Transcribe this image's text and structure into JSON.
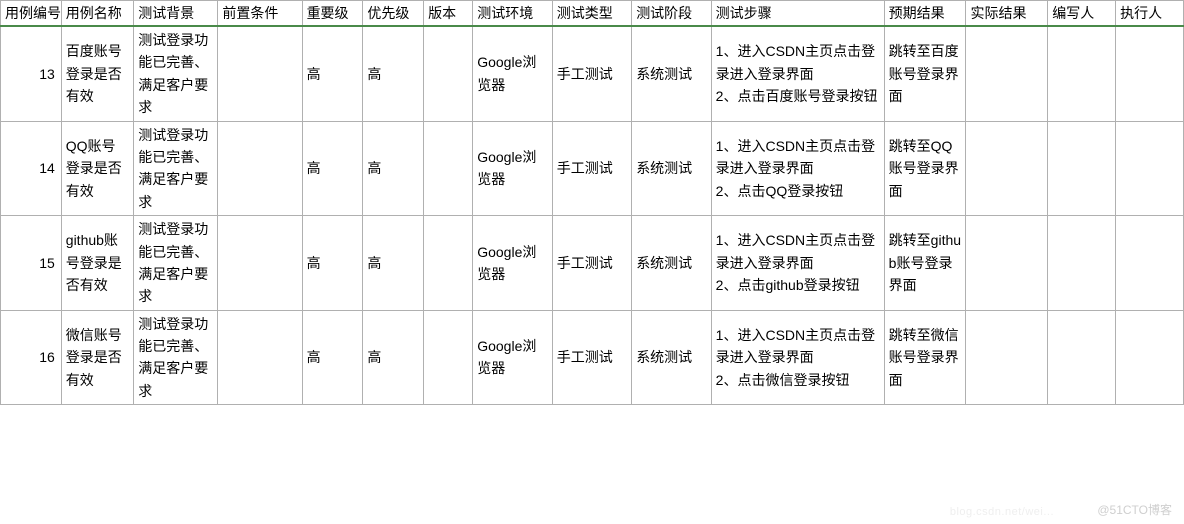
{
  "columns": [
    "用例编号",
    "用例名称",
    "测试背景",
    "前置条件",
    "重要级",
    "优先级",
    "版本",
    "测试环境",
    "测试类型",
    "测试阶段",
    "测试步骤",
    "预期结果",
    "实际结果",
    "编写人",
    "执行人"
  ],
  "colClasses": [
    "col-id",
    "col-name",
    "col-bg",
    "col-pre",
    "col-imp",
    "col-pri",
    "col-ver",
    "col-env",
    "col-type",
    "col-phase",
    "col-step",
    "col-expect",
    "col-actual",
    "col-author",
    "col-exec"
  ],
  "rows": [
    {
      "id": "13",
      "name": "百度账号登录是否有效",
      "bg": "测试登录功能已完善、满足客户要求",
      "pre": "",
      "importance": "高",
      "priority": "高",
      "version": "",
      "env": "Google浏览器",
      "testType": "手工测试",
      "phase": "系统测试",
      "steps": "1、进入CSDN主页点击登录进入登录界面\n2、点击百度账号登录按钮",
      "expected": "跳转至百度账号登录界面",
      "actual": "",
      "author": "",
      "executor": ""
    },
    {
      "id": "14",
      "name": "QQ账号登录是否有效",
      "bg": "测试登录功能已完善、满足客户要求",
      "pre": "",
      "importance": "高",
      "priority": "高",
      "version": "",
      "env": "Google浏览器",
      "testType": "手工测试",
      "phase": "系统测试",
      "steps": "1、进入CSDN主页点击登录进入登录界面\n2、点击QQ登录按钮",
      "expected": "跳转至QQ账号登录界面",
      "actual": "",
      "author": "",
      "executor": ""
    },
    {
      "id": "15",
      "name": "github账号登录是否有效",
      "bg": "测试登录功能已完善、满足客户要求",
      "pre": "",
      "importance": "高",
      "priority": "高",
      "version": "",
      "env": "Google浏览器",
      "testType": "手工测试",
      "phase": "系统测试",
      "steps": "1、进入CSDN主页点击登录进入登录界面\n2、点击github登录按钮",
      "expected": "跳转至github账号登录界面",
      "actual": "",
      "author": "",
      "executor": ""
    },
    {
      "id": "16",
      "name": "微信账号登录是否有效",
      "bg": "测试登录功能已完善、满足客户要求",
      "pre": "",
      "importance": "高",
      "priority": "高",
      "version": "",
      "env": "Google浏览器",
      "testType": "手工测试",
      "phase": "系统测试",
      "steps": "1、进入CSDN主页点击登录进入登录界面\n2、点击微信登录按钮",
      "expected": "跳转至微信账号登录界面",
      "actual": "",
      "author": "",
      "executor": ""
    }
  ],
  "watermark": "@51CTO博客",
  "watermark2": "blog.csdn.net/wei..."
}
